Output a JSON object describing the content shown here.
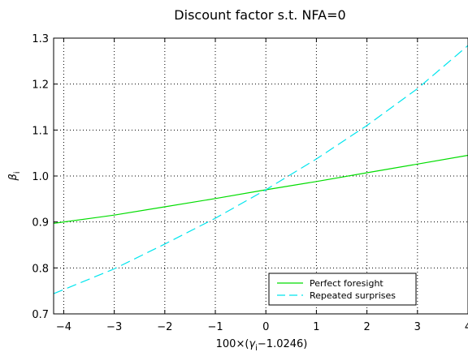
{
  "chart_data": {
    "type": "line",
    "title": "Discount factor s.t. NFA=0",
    "xlabel": {
      "prefix": "100×(",
      "symbol": "γ",
      "sub": "i",
      "suffix": "−1.0246)"
    },
    "ylabel": {
      "symbol": "β",
      "sub": "i"
    },
    "xlim": [
      -4.2,
      4.0
    ],
    "ylim": [
      0.7,
      1.3
    ],
    "x_ticks": [
      -4,
      -3,
      -2,
      -1,
      0,
      1,
      2,
      3,
      4
    ],
    "x_tick_labels": [
      "−4",
      "−3",
      "−2",
      "−1",
      "0",
      "1",
      "2",
      "3",
      "4"
    ],
    "y_ticks": [
      0.7,
      0.8,
      0.9,
      1.0,
      1.1,
      1.2,
      1.3
    ],
    "y_tick_labels": [
      "0.7",
      "0.8",
      "0.9",
      "1.0",
      "1.1",
      "1.2",
      "1.3"
    ],
    "grid": true,
    "legend_position": "bottom-right",
    "series": [
      {
        "name": "Perfect foresight",
        "color": "#00dd00",
        "dash": "solid",
        "x": [
          -4.2,
          -3,
          -2,
          -1,
          0,
          1,
          2,
          3,
          4
        ],
        "y": [
          0.897,
          0.915,
          0.933,
          0.951,
          0.97,
          0.988,
          1.007,
          1.026,
          1.045
        ]
      },
      {
        "name": "Repeated surprises",
        "color": "#00e5ee",
        "dash": "dashed",
        "x": [
          -4.2,
          -3,
          -2,
          -1,
          0,
          1,
          2,
          3,
          4
        ],
        "y": [
          0.744,
          0.798,
          0.852,
          0.908,
          0.97,
          1.037,
          1.11,
          1.19,
          1.284
        ]
      }
    ]
  }
}
